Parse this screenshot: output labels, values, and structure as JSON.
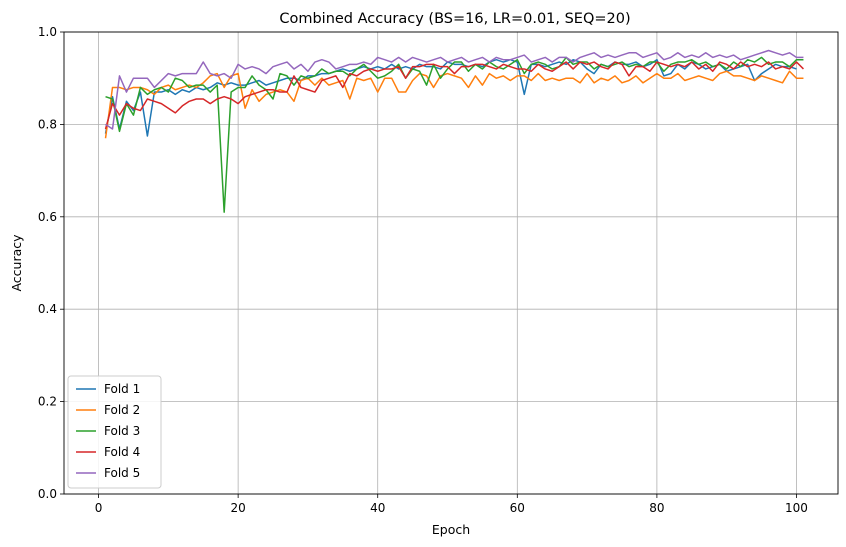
{
  "chart_data": {
    "type": "line",
    "title": "Combined Accuracy (BS=16, LR=0.01, SEQ=20)",
    "xlabel": "Epoch",
    "ylabel": "Accuracy",
    "xlim": [
      -4.95,
      105.95
    ],
    "ylim": [
      0.0,
      1.0
    ],
    "xticks": [
      0,
      20,
      40,
      60,
      80,
      100
    ],
    "yticks": [
      0.0,
      0.2,
      0.4,
      0.6,
      0.8,
      1.0
    ],
    "xtick_labels": [
      "0",
      "20",
      "40",
      "60",
      "80",
      "100"
    ],
    "ytick_labels": [
      "0.0",
      "0.2",
      "0.4",
      "0.6",
      "0.8",
      "1.0"
    ],
    "grid": true,
    "legend_position": "lower-left",
    "x_start": 1,
    "series": [
      {
        "name": "Fold 1",
        "color": "#1f77b4",
        "values": [
          0.78,
          0.86,
          0.79,
          0.85,
          0.83,
          0.87,
          0.775,
          0.87,
          0.87,
          0.875,
          0.865,
          0.875,
          0.87,
          0.88,
          0.875,
          0.88,
          0.89,
          0.885,
          0.89,
          0.885,
          0.885,
          0.89,
          0.895,
          0.885,
          0.89,
          0.895,
          0.9,
          0.9,
          0.895,
          0.905,
          0.905,
          0.91,
          0.91,
          0.915,
          0.92,
          0.915,
          0.92,
          0.925,
          0.92,
          0.925,
          0.92,
          0.93,
          0.92,
          0.925,
          0.92,
          0.93,
          0.925,
          0.925,
          0.92,
          0.935,
          0.93,
          0.93,
          0.925,
          0.93,
          0.925,
          0.935,
          0.94,
          0.935,
          0.94,
          0.935,
          0.865,
          0.93,
          0.93,
          0.925,
          0.93,
          0.935,
          0.93,
          0.94,
          0.935,
          0.92,
          0.91,
          0.93,
          0.925,
          0.935,
          0.93,
          0.93,
          0.935,
          0.925,
          0.93,
          0.94,
          0.905,
          0.91,
          0.93,
          0.92,
          0.935,
          0.93,
          0.92,
          0.925,
          0.93,
          0.915,
          0.92,
          0.925,
          0.93,
          0.895,
          0.91,
          0.92,
          0.93,
          0.925,
          0.925,
          0.92
        ]
      },
      {
        "name": "Fold 2",
        "color": "#ff7f0e",
        "values": [
          0.77,
          0.88,
          0.88,
          0.875,
          0.88,
          0.88,
          0.875,
          0.865,
          0.88,
          0.885,
          0.875,
          0.88,
          0.885,
          0.88,
          0.89,
          0.905,
          0.91,
          0.88,
          0.905,
          0.91,
          0.835,
          0.875,
          0.85,
          0.865,
          0.87,
          0.875,
          0.87,
          0.85,
          0.895,
          0.9,
          0.885,
          0.9,
          0.885,
          0.89,
          0.895,
          0.855,
          0.9,
          0.895,
          0.9,
          0.87,
          0.9,
          0.9,
          0.87,
          0.87,
          0.895,
          0.91,
          0.905,
          0.88,
          0.905,
          0.91,
          0.905,
          0.9,
          0.88,
          0.905,
          0.885,
          0.91,
          0.9,
          0.905,
          0.895,
          0.905,
          0.905,
          0.895,
          0.91,
          0.895,
          0.9,
          0.895,
          0.9,
          0.9,
          0.89,
          0.91,
          0.89,
          0.9,
          0.895,
          0.905,
          0.89,
          0.895,
          0.905,
          0.89,
          0.9,
          0.91,
          0.9,
          0.9,
          0.91,
          0.895,
          0.9,
          0.905,
          0.9,
          0.895,
          0.91,
          0.915,
          0.905,
          0.905,
          0.9,
          0.895,
          0.905,
          0.9,
          0.895,
          0.89,
          0.915,
          0.9,
          0.9
        ]
      },
      {
        "name": "Fold 3",
        "color": "#2ca02c",
        "values": [
          0.86,
          0.855,
          0.785,
          0.845,
          0.82,
          0.88,
          0.865,
          0.875,
          0.88,
          0.87,
          0.9,
          0.895,
          0.88,
          0.885,
          0.885,
          0.87,
          0.885,
          0.61,
          0.87,
          0.88,
          0.88,
          0.905,
          0.885,
          0.875,
          0.855,
          0.91,
          0.905,
          0.885,
          0.905,
          0.9,
          0.905,
          0.92,
          0.91,
          0.915,
          0.915,
          0.905,
          0.92,
          0.93,
          0.915,
          0.9,
          0.905,
          0.915,
          0.93,
          0.9,
          0.92,
          0.915,
          0.885,
          0.93,
          0.9,
          0.92,
          0.935,
          0.935,
          0.915,
          0.93,
          0.92,
          0.935,
          0.925,
          0.92,
          0.93,
          0.94,
          0.91,
          0.93,
          0.935,
          0.93,
          0.92,
          0.925,
          0.945,
          0.93,
          0.935,
          0.935,
          0.92,
          0.93,
          0.925,
          0.93,
          0.935,
          0.925,
          0.93,
          0.925,
          0.935,
          0.935,
          0.915,
          0.93,
          0.935,
          0.935,
          0.94,
          0.93,
          0.935,
          0.925,
          0.93,
          0.92,
          0.935,
          0.925,
          0.94,
          0.935,
          0.945,
          0.93,
          0.935,
          0.935,
          0.925,
          0.94,
          0.94
        ]
      },
      {
        "name": "Fold 4",
        "color": "#d62728",
        "values": [
          0.79,
          0.845,
          0.82,
          0.845,
          0.835,
          0.83,
          0.855,
          0.85,
          0.845,
          0.835,
          0.825,
          0.84,
          0.85,
          0.855,
          0.855,
          0.845,
          0.855,
          0.86,
          0.855,
          0.845,
          0.86,
          0.865,
          0.87,
          0.875,
          0.875,
          0.87,
          0.87,
          0.905,
          0.88,
          0.875,
          0.87,
          0.895,
          0.9,
          0.905,
          0.88,
          0.91,
          0.905,
          0.915,
          0.92,
          0.915,
          0.92,
          0.92,
          0.925,
          0.9,
          0.925,
          0.925,
          0.93,
          0.93,
          0.925,
          0.925,
          0.91,
          0.925,
          0.925,
          0.93,
          0.93,
          0.925,
          0.92,
          0.93,
          0.925,
          0.92,
          0.92,
          0.915,
          0.93,
          0.92,
          0.915,
          0.925,
          0.935,
          0.92,
          0.935,
          0.93,
          0.935,
          0.925,
          0.92,
          0.935,
          0.93,
          0.905,
          0.925,
          0.925,
          0.915,
          0.935,
          0.93,
          0.925,
          0.93,
          0.925,
          0.935,
          0.92,
          0.93,
          0.915,
          0.935,
          0.93,
          0.92,
          0.935,
          0.925,
          0.93,
          0.925,
          0.935,
          0.92,
          0.925,
          0.92,
          0.935,
          0.92
        ]
      },
      {
        "name": "Fold 5",
        "color": "#9467bd",
        "values": [
          0.8,
          0.79,
          0.905,
          0.87,
          0.9,
          0.9,
          0.9,
          0.88,
          0.895,
          0.91,
          0.905,
          0.91,
          0.91,
          0.91,
          0.935,
          0.91,
          0.905,
          0.91,
          0.9,
          0.93,
          0.92,
          0.925,
          0.92,
          0.91,
          0.925,
          0.93,
          0.935,
          0.92,
          0.93,
          0.915,
          0.935,
          0.94,
          0.935,
          0.92,
          0.925,
          0.93,
          0.93,
          0.935,
          0.93,
          0.945,
          0.94,
          0.935,
          0.945,
          0.935,
          0.945,
          0.94,
          0.935,
          0.94,
          0.945,
          0.935,
          0.94,
          0.945,
          0.935,
          0.94,
          0.945,
          0.935,
          0.945,
          0.94,
          0.94,
          0.945,
          0.95,
          0.935,
          0.94,
          0.945,
          0.935,
          0.945,
          0.945,
          0.935,
          0.945,
          0.95,
          0.955,
          0.945,
          0.95,
          0.945,
          0.95,
          0.955,
          0.955,
          0.945,
          0.95,
          0.955,
          0.94,
          0.945,
          0.955,
          0.945,
          0.95,
          0.945,
          0.955,
          0.945,
          0.95,
          0.945,
          0.95,
          0.94,
          0.945,
          0.95,
          0.955,
          0.96,
          0.955,
          0.95,
          0.955,
          0.945,
          0.945
        ]
      }
    ]
  }
}
